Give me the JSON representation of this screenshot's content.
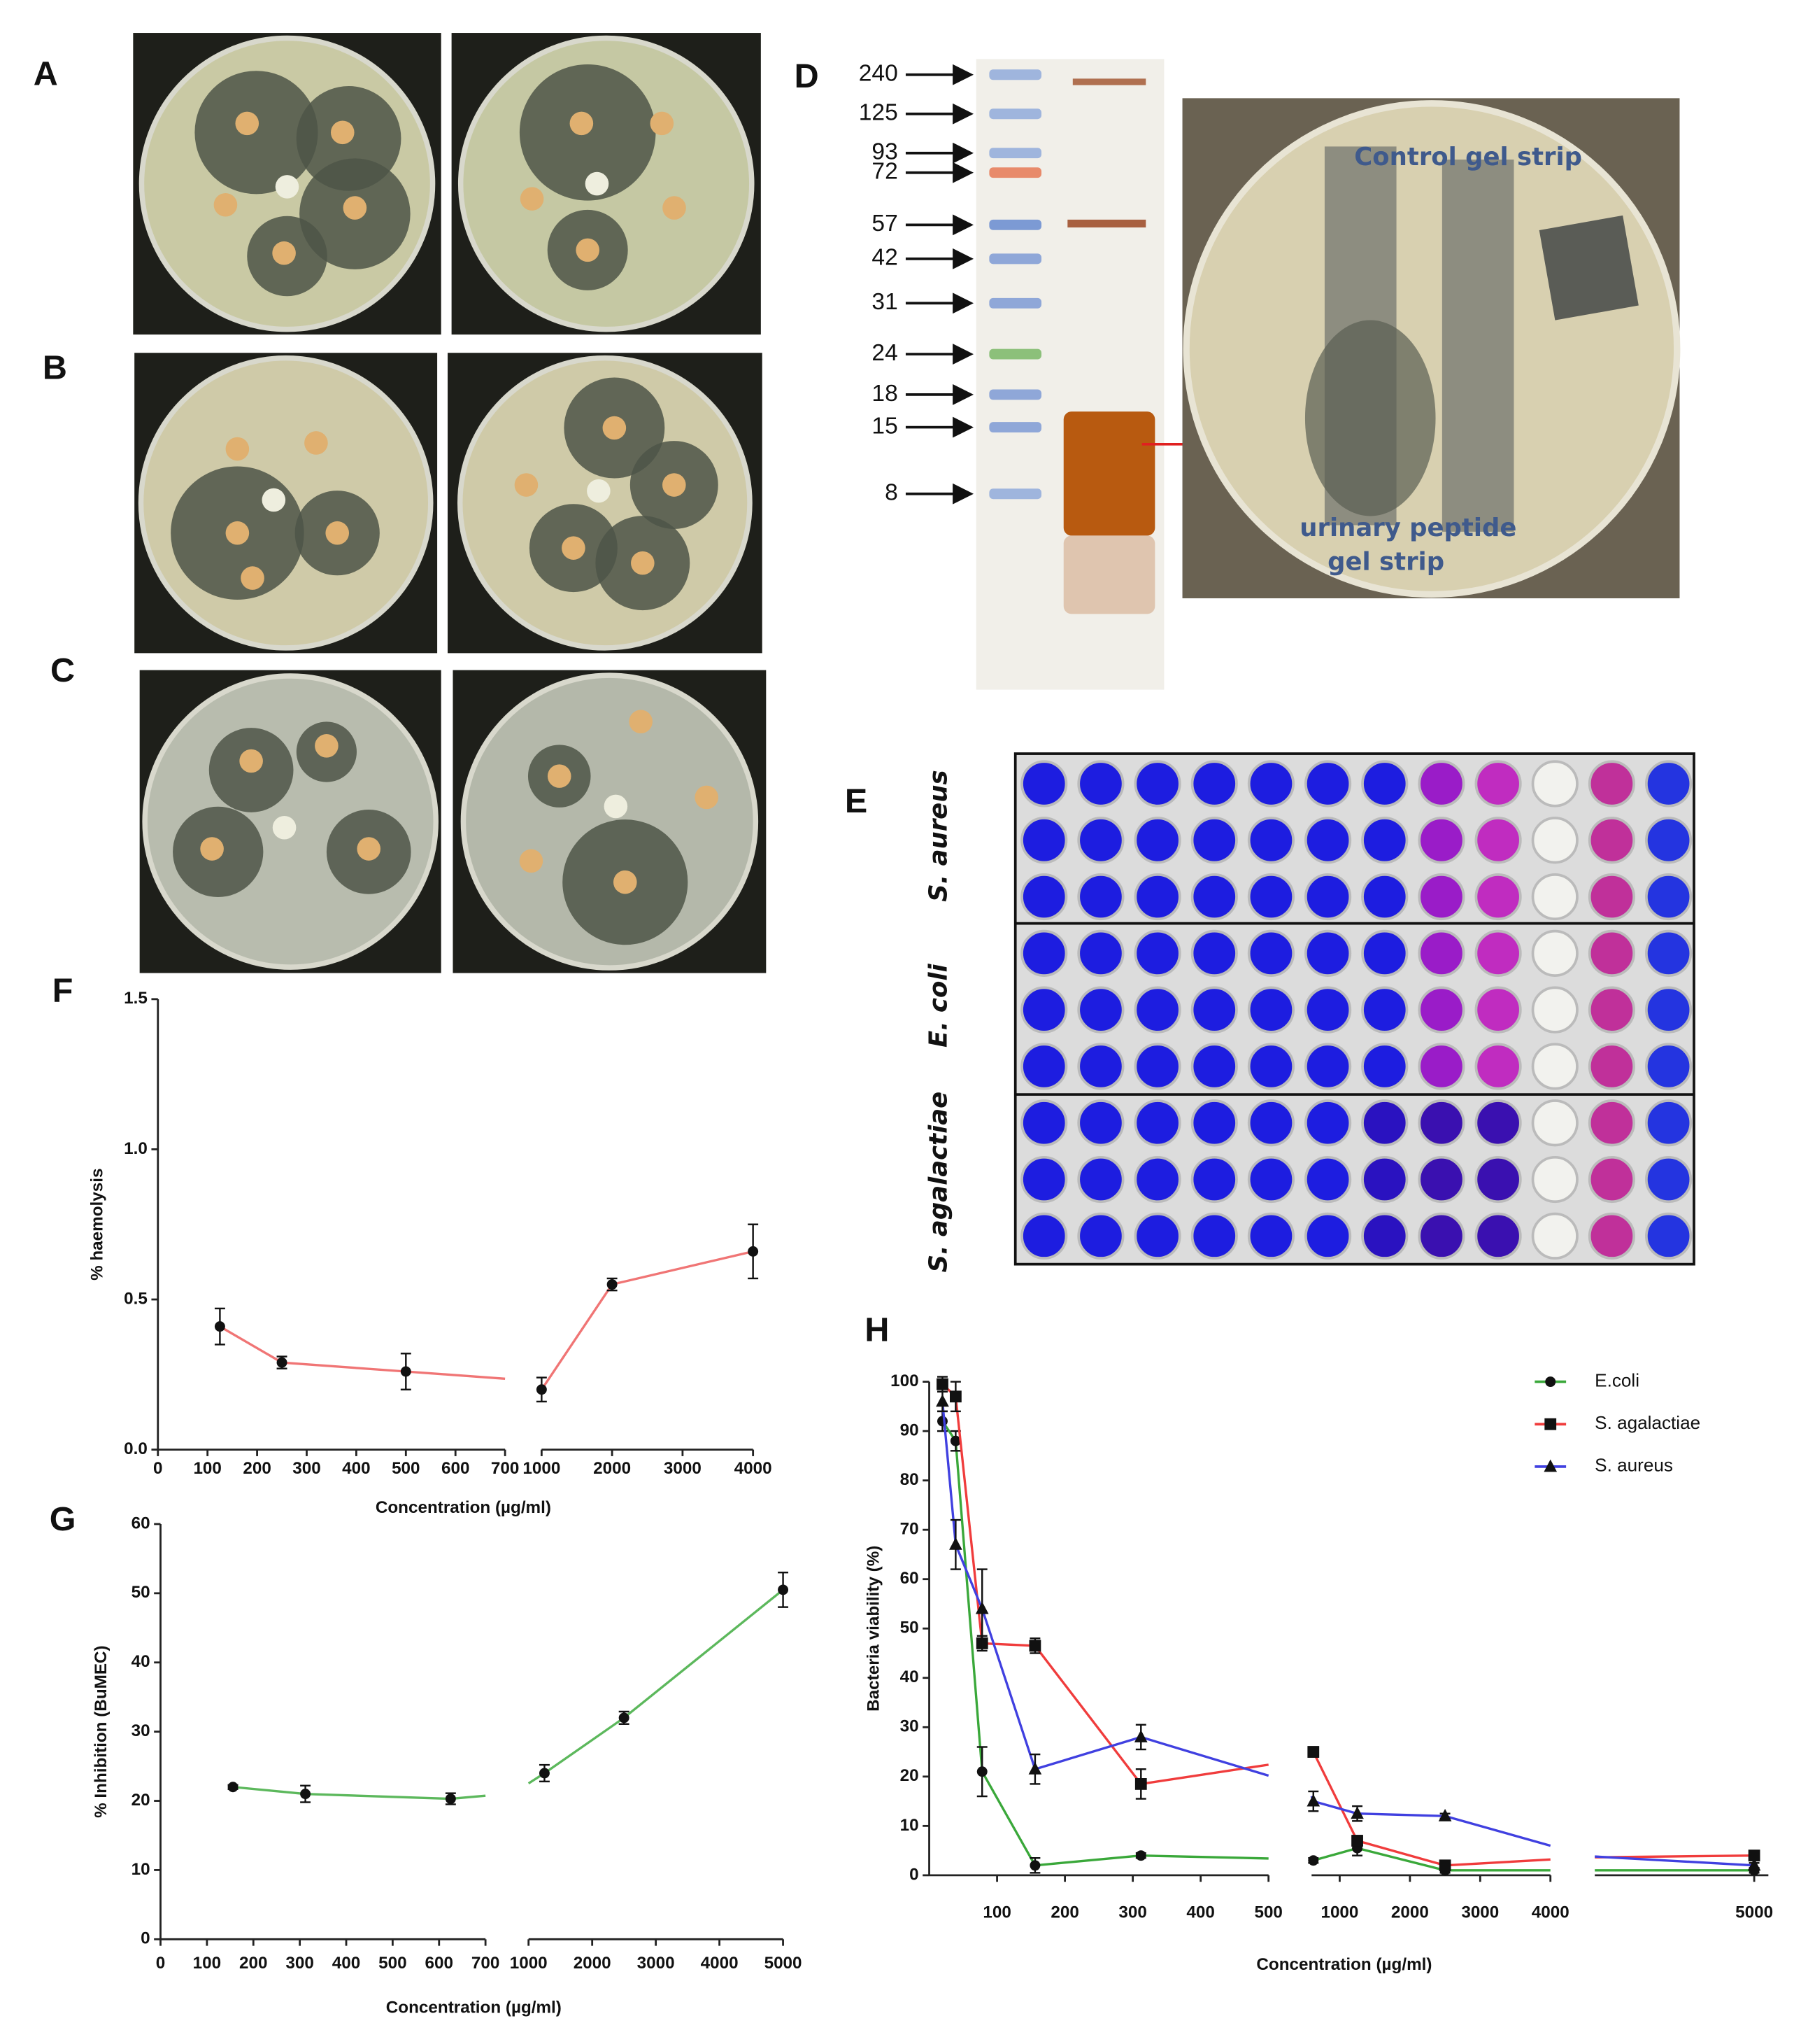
{
  "panel_labels": [
    "A",
    "B",
    "C",
    "D",
    "E",
    "F",
    "G",
    "H"
  ],
  "gel": {
    "markers": [
      "240",
      "125",
      "93",
      "72",
      "57",
      "42",
      "31",
      "24",
      "18",
      "15",
      "8"
    ]
  },
  "plate_labels": {
    "control": "Control gel strip",
    "urinary": [
      "urinary peptide",
      "gel strip"
    ]
  },
  "wells": {
    "rows": [
      "S. aureus",
      "E. coli",
      "S. agalactiae"
    ]
  },
  "chart_data": [
    {
      "type": "line",
      "xlabel": "Concentration (µg/ml)",
      "ylabel": "% haemolysis",
      "x": [
        125,
        250,
        500,
        1000,
        2000,
        4000
      ],
      "series": [
        {
          "color": "#f07575",
          "marker": "circle",
          "values": [
            0.41,
            0.29,
            0.26,
            0.2,
            0.55,
            0.66
          ],
          "errors": [
            0.06,
            0.02,
            0.06,
            0.04,
            0.02,
            0.09
          ]
        }
      ],
      "xlim": [
        [
          0,
          700
        ],
        [
          1000,
          4000
        ]
      ],
      "xticks": [
        0,
        100,
        200,
        300,
        400,
        500,
        600,
        700,
        1000,
        2000,
        3000,
        4000
      ],
      "ylim": [
        0,
        1.5
      ],
      "yticks": [
        {
          "value": 0,
          "label": "0.0"
        },
        {
          "value": 0.5,
          "label": "0.5"
        },
        {
          "value": 1,
          "label": "1.0"
        },
        {
          "value": 1.5,
          "label": "1.5"
        }
      ]
    },
    {
      "type": "line",
      "xlabel": "Concentration (µg/ml)",
      "ylabel": "% Inhibition (BuMEC)",
      "x": [
        156,
        312,
        625,
        1250,
        2500,
        5000
      ],
      "series": [
        {
          "color": "#5cb85c",
          "marker": "circle",
          "values": [
            22,
            21,
            20.3,
            24,
            32,
            50.5
          ],
          "errors": [
            0.3,
            1.2,
            0.8,
            1.2,
            0.9,
            2.5
          ]
        }
      ],
      "xlim": [
        [
          0,
          700
        ],
        [
          1000,
          5000
        ]
      ],
      "xticks": [
        0,
        100,
        200,
        300,
        400,
        500,
        600,
        700,
        1000,
        2000,
        3000,
        4000,
        5000
      ],
      "ylim": [
        0,
        60
      ],
      "yticks": [
        0,
        10,
        20,
        30,
        40,
        50,
        60
      ]
    },
    {
      "type": "line",
      "xlabel": "Concentration (µg/ml)",
      "ylabel": "Bacteria viability (%)",
      "x": [
        19.5,
        39,
        78,
        156,
        312,
        625,
        1250,
        2500,
        5000
      ],
      "series": [
        {
          "name": "E.coli",
          "color": "#3aa83a",
          "marker": "circle",
          "values": [
            92,
            88,
            21,
            2,
            4,
            3,
            5.5,
            1,
            1
          ],
          "errors": [
            2,
            2,
            5,
            1.5,
            0.5,
            0.5,
            1.5,
            0.5,
            0.5
          ]
        },
        {
          "name": "S. agalactiae",
          "color": "#f03c3c",
          "marker": "square",
          "values": [
            99.5,
            97,
            47,
            46.5,
            18.5,
            25,
            7,
            2,
            4
          ],
          "errors": [
            1.5,
            3,
            1.5,
            1.5,
            3,
            1,
            1,
            0.5,
            0.5
          ]
        },
        {
          "name": "S. aureus",
          "color": "#4040e0",
          "marker": "triangle",
          "values": [
            96,
            67,
            54,
            21.5,
            28,
            15,
            12.5,
            12,
            2
          ],
          "errors": [
            2,
            5,
            8,
            3,
            2.5,
            2,
            1.5,
            0.5,
            0.5
          ]
        }
      ],
      "xlim": [
        [
          0,
          500
        ],
        [
          600,
          4000
        ],
        [
          4550,
          5040
        ]
      ],
      "xticks": [
        100,
        200,
        300,
        400,
        500,
        1000,
        2000,
        3000,
        4000,
        5000
      ],
      "ylim": [
        0,
        100
      ],
      "yticks": [
        0,
        10,
        20,
        30,
        40,
        50,
        60,
        70,
        80,
        90,
        100
      ],
      "legend": "top-right"
    }
  ]
}
